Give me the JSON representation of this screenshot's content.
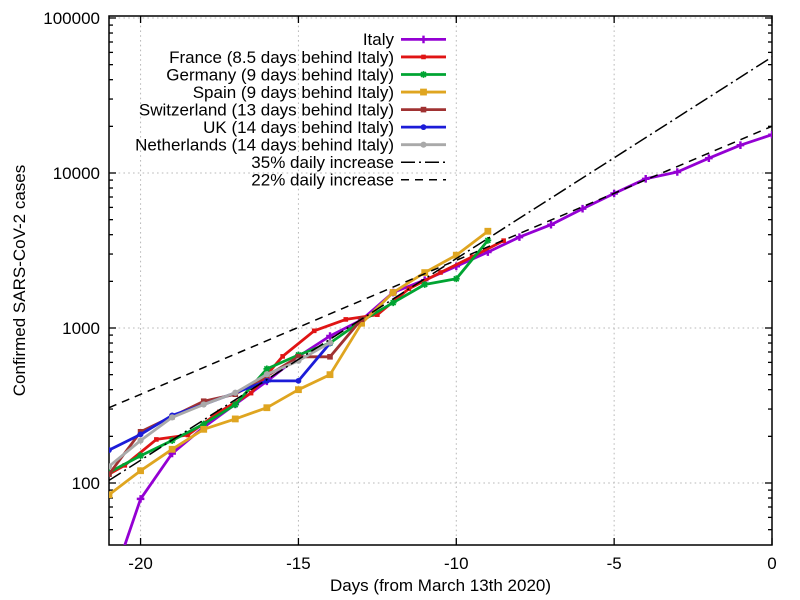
{
  "page": {
    "background": "#ffffff"
  },
  "chart_data": {
    "type": "line",
    "title": "",
    "xlabel": "Days (from March 13th 2020)",
    "ylabel": "Confirmed SARS-CoV-2 cases",
    "x_scale": "linear",
    "y_scale": "log",
    "xlim": [
      -21,
      0
    ],
    "ylim": [
      40,
      103000
    ],
    "x_ticks": [
      -20,
      -15,
      -10,
      -5,
      0
    ],
    "x_tick_labels": [
      "-20",
      "-15",
      "-10",
      "-5",
      "0"
    ],
    "y_ticks": [
      100,
      1000,
      10000,
      100000
    ],
    "y_tick_labels": [
      "100",
      "1000",
      "10000",
      "100000"
    ],
    "grid": true,
    "grid_color": "#b8b8b8",
    "legend_position": "top-right-inside",
    "series": [
      {
        "name": "Italy",
        "slug": "italy",
        "color": "#9400d3",
        "marker": "plus",
        "marker_size": 3.8,
        "line_style": "solid",
        "line_width": 2.8,
        "x": [
          -21,
          -20,
          -19,
          -18,
          -17,
          -16,
          -15,
          -14,
          -13,
          -12,
          -11,
          -10,
          -9,
          -8,
          -7,
          -6,
          -5,
          -4,
          -3,
          -2,
          -1,
          0
        ],
        "y": [
          20,
          79,
          155,
          229,
          322,
          453,
          655,
          888,
          1128,
          1694,
          2036,
          2502,
          3089,
          3858,
          4636,
          5883,
          7375,
          9172,
          10149,
          12462,
          15113,
          17660
        ]
      },
      {
        "name": "France (8.5 days behind Italy)",
        "slug": "france",
        "color": "#e01414",
        "marker": "square",
        "marker_size": 2.3,
        "line_style": "solid",
        "line_width": 2.8,
        "x": [
          -21.5,
          -20.5,
          -19.5,
          -18.5,
          -17.5,
          -16.5,
          -15.5,
          -14.5,
          -13.5,
          -12.5,
          -11.5,
          -10.5,
          -9.5,
          -8.5
        ],
        "y": [
          100,
          130,
          191,
          204,
          288,
          380,
          656,
          959,
          1136,
          1219,
          1794,
          2281,
          2876,
          3661
        ]
      },
      {
        "name": "Germany (9 days behind Italy)",
        "slug": "germany",
        "color": "#00a432",
        "marker": "asterisk",
        "marker_size": 3.4,
        "line_style": "solid",
        "line_width": 2.8,
        "x": [
          -21,
          -20,
          -19,
          -18,
          -17,
          -16,
          -15,
          -14,
          -13,
          -12,
          -11,
          -10,
          -9
        ],
        "y": [
          117,
          150,
          188,
          240,
          320,
          545,
          670,
          800,
          1112,
          1457,
          1908,
          2078,
          3675
        ]
      },
      {
        "name": "Spain (9 days behind Italy)",
        "slug": "spain",
        "color": "#dfa520",
        "marker": "square",
        "marker_size": 3.4,
        "line_style": "solid",
        "line_width": 2.8,
        "x": [
          -21,
          -20,
          -19,
          -18,
          -17,
          -16,
          -15,
          -14,
          -13,
          -12,
          -11,
          -10,
          -9
        ],
        "y": [
          84,
          120,
          165,
          222,
          259,
          306,
          400,
          500,
          1073,
          1695,
          2277,
          2950,
          4209
        ]
      },
      {
        "name": "Switzerland (13 days behind Italy)",
        "slug": "switzerland",
        "color": "#a03232",
        "marker": "square",
        "marker_size": 2.8,
        "line_style": "solid",
        "line_width": 2.8,
        "x": [
          -21,
          -20,
          -19,
          -18,
          -17,
          -16,
          -15,
          -14,
          -13
        ],
        "y": [
          114,
          214,
          268,
          337,
          374,
          491,
          652,
          652,
          1139
        ]
      },
      {
        "name": "UK (14 days behind Italy)",
        "slug": "uk",
        "color": "#1c1cd8",
        "marker": "circle",
        "marker_size": 2.9,
        "line_style": "solid",
        "line_width": 2.8,
        "x": [
          -21,
          -20,
          -19,
          -18,
          -17,
          -16,
          -15,
          -14
        ],
        "y": [
          163,
          206,
          273,
          321,
          382,
          456,
          456,
          798
        ]
      },
      {
        "name": "Netherlands (14 days behind Italy)",
        "slug": "netherlands",
        "color": "#a9a9a9",
        "marker": "circle",
        "marker_size": 3.1,
        "line_style": "solid",
        "line_width": 2.8,
        "x": [
          -21,
          -20,
          -19,
          -18,
          -17,
          -16,
          -15,
          -14
        ],
        "y": [
          128,
          188,
          265,
          321,
          382,
          503,
          614,
          804
        ]
      },
      {
        "name": "35% daily increase",
        "slug": "line-35pct",
        "color": "#000000",
        "marker": "none",
        "marker_size": 0,
        "line_style": "dashdot",
        "line_width": 1.5,
        "x": [
          -21,
          0
        ],
        "y": [
          104,
          56000
        ]
      },
      {
        "name": "22% daily increase",
        "slug": "line-22pct",
        "color": "#000000",
        "marker": "none",
        "marker_size": 0,
        "line_style": "dashed",
        "line_width": 1.5,
        "x": [
          -21,
          0
        ],
        "y": [
          306,
          20000
        ]
      }
    ]
  }
}
